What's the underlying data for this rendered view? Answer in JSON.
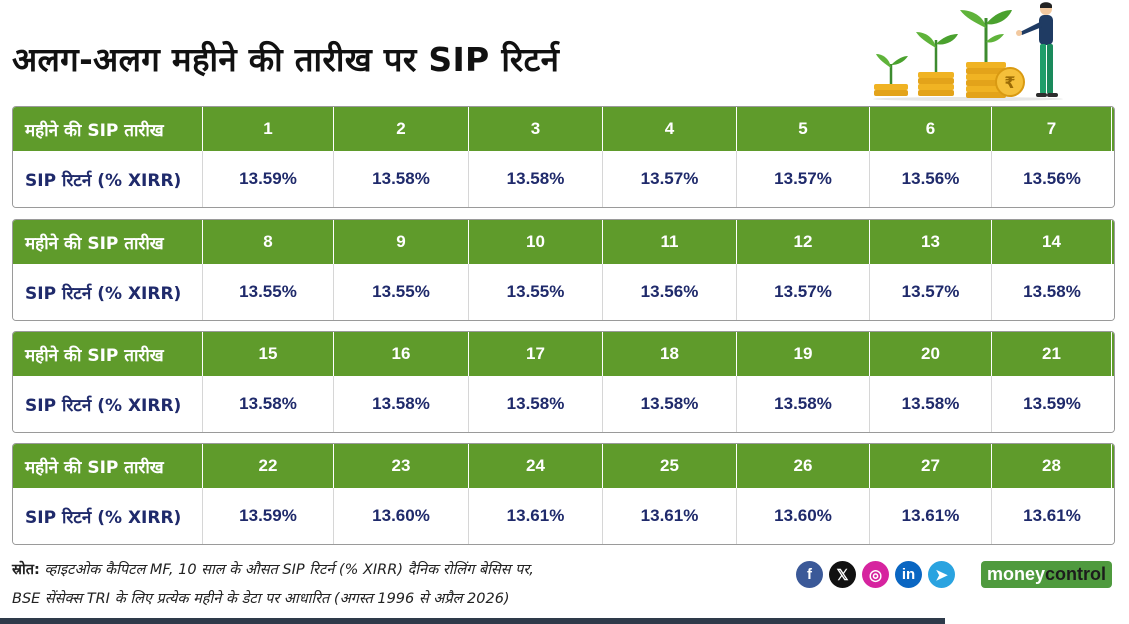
{
  "title": "अलग-अलग महीने की तारीख पर SIP रिटर्न",
  "row_labels": {
    "date": "महीने की SIP तारीख",
    "return": "SIP रिटर्न (% XIRR)"
  },
  "tables": [
    {
      "dates": [
        "1",
        "2",
        "3",
        "4",
        "5",
        "6",
        "7"
      ],
      "returns": [
        "13.59%",
        "13.58%",
        "13.58%",
        "13.57%",
        "13.57%",
        "13.56%",
        "13.56%"
      ]
    },
    {
      "dates": [
        "8",
        "9",
        "10",
        "11",
        "12",
        "13",
        "14"
      ],
      "returns": [
        "13.55%",
        "13.55%",
        "13.55%",
        "13.56%",
        "13.57%",
        "13.57%",
        "13.58%"
      ]
    },
    {
      "dates": [
        "15",
        "16",
        "17",
        "18",
        "19",
        "20",
        "21"
      ],
      "returns": [
        "13.58%",
        "13.58%",
        "13.58%",
        "13.58%",
        "13.58%",
        "13.58%",
        "13.59%"
      ]
    },
    {
      "dates": [
        "22",
        "23",
        "24",
        "25",
        "26",
        "27",
        "28"
      ],
      "returns": [
        "13.59%",
        "13.60%",
        "13.61%",
        "13.61%",
        "13.60%",
        "13.61%",
        "13.61%"
      ]
    }
  ],
  "source": {
    "label": "स्रोत:",
    "line1": " व्हाइटओक कैपिटल MF, 10 साल के औसत SIP रिटर्न (% XIRR) दैनिक रोलिंग बेसिस पर,",
    "line2": "BSE सेंसेक्स TRI के लिए प्रत्येक महीने के डेटा पर आधारित (अगस्त 1996 से अप्रैल 2026)"
  },
  "social": [
    {
      "icon": "facebook-icon",
      "glyph": "f",
      "color": "#3b5998"
    },
    {
      "icon": "x-icon",
      "glyph": "𝕏",
      "color": "#111111"
    },
    {
      "icon": "instagram-icon",
      "glyph": "◎",
      "color": "#d6249f"
    },
    {
      "icon": "linkedin-icon",
      "glyph": "in",
      "color": "#0a66c2"
    },
    {
      "icon": "telegram-icon",
      "glyph": "➤",
      "color": "#2aa3e0"
    }
  ],
  "brand": {
    "part1": "money",
    "part2": "control"
  },
  "colors": {
    "header_green": "#5f9b2b",
    "value_text": "#1f2a6b",
    "brand_green": "#4f9a3e"
  }
}
